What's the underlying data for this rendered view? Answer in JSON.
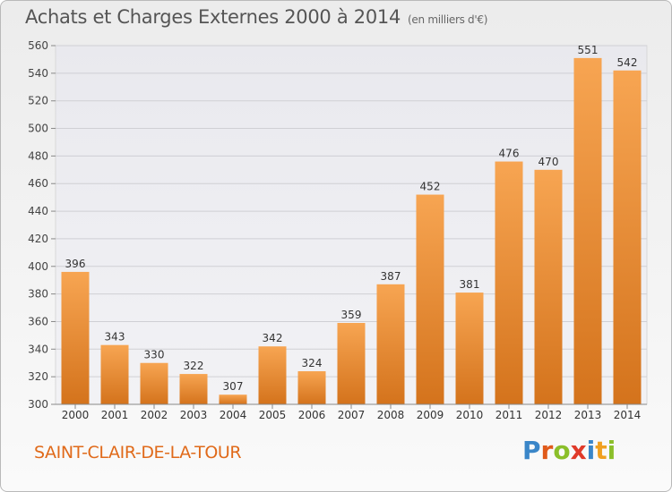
{
  "header": {
    "title": "Achats et Charges Externes 2000 à 2014",
    "unit": "(en milliers d'€)"
  },
  "footer": {
    "city": "SAINT-CLAIR-DE-LA-TOUR",
    "logo_letters": [
      "P",
      "r",
      "o",
      "x",
      "i",
      "t",
      "i"
    ],
    "logo_colors": [
      "#3a86c8",
      "#e05a1a",
      "#8bbf2a",
      "#e03a2a",
      "#3a86c8",
      "#f0a020",
      "#8bbf2a"
    ]
  },
  "chart_data": {
    "type": "bar",
    "title": "Achats et Charges Externes 2000 à 2014",
    "subtitle": "(en milliers d'€)",
    "categories": [
      "2000",
      "2001",
      "2002",
      "2003",
      "2004",
      "2005",
      "2006",
      "2007",
      "2008",
      "2009",
      "2010",
      "2011",
      "2012",
      "2013",
      "2014"
    ],
    "values": [
      396,
      343,
      330,
      322,
      307,
      342,
      324,
      359,
      387,
      452,
      381,
      476,
      470,
      551,
      542
    ],
    "xlabel": "",
    "ylabel": "",
    "ylim": [
      300,
      560
    ],
    "yticks": [
      300,
      320,
      340,
      360,
      380,
      400,
      420,
      440,
      460,
      480,
      500,
      520,
      540,
      560
    ],
    "grid": true,
    "bar_color_top": "#f7a552",
    "bar_color_bottom": "#d4731c"
  }
}
